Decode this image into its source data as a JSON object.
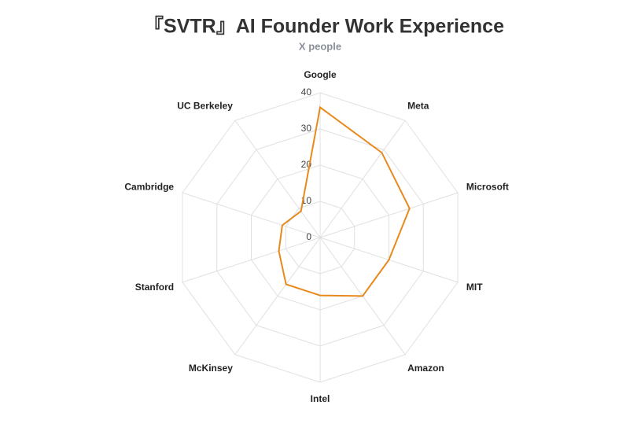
{
  "chart_data": {
    "type": "radar",
    "title": "『SVTR』AI Founder Work Experience",
    "subtitle": "X people",
    "categories": [
      "Google",
      "Meta",
      "Microsoft",
      "MIT",
      "Amazon",
      "Intel",
      "McKinsey",
      "Stanford",
      "Cambridge",
      "UC Berkeley"
    ],
    "series": [
      {
        "name": "X people",
        "color": "#e8891c",
        "values": [
          36,
          29,
          26,
          20,
          20,
          16,
          16,
          12,
          11,
          9
        ]
      }
    ],
    "ylim": [
      0,
      40
    ],
    "yticks": [
      0,
      10,
      20,
      30,
      40
    ],
    "grid": true
  }
}
